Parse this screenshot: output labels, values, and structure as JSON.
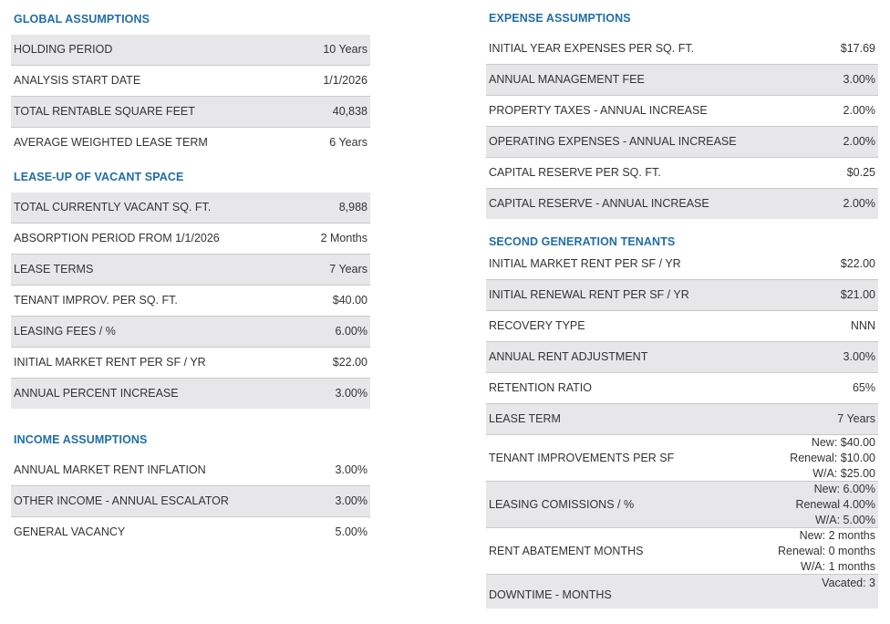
{
  "global": {
    "title": "GLOBAL ASSUMPTIONS",
    "rows": [
      {
        "label": "HOLDING PERIOD",
        "value": "10 Years"
      },
      {
        "label": "ANALYSIS START DATE",
        "value": "1/1/2026"
      },
      {
        "label": "TOTAL RENTABLE SQUARE FEET",
        "value": "40,838"
      },
      {
        "label": "AVERAGE WEIGHTED LEASE TERM",
        "value": "6 Years"
      }
    ]
  },
  "leaseup": {
    "title": "LEASE-UP OF VACANT SPACE",
    "rows": [
      {
        "label": "TOTAL CURRENTLY VACANT SQ. FT.",
        "value": "8,988"
      },
      {
        "label": "ABSORPTION PERIOD FROM 1/1/2026",
        "value": "2 Months"
      },
      {
        "label": "LEASE TERMS",
        "value": "7 Years"
      },
      {
        "label": "TENANT IMPROV. PER SQ. FT.",
        "value": "$40.00"
      },
      {
        "label": "LEASING FEES / %",
        "value": "6.00%"
      },
      {
        "label": "INITIAL MARKET RENT PER SF / YR",
        "value": "$22.00"
      },
      {
        "label": "ANNUAL PERCENT INCREASE",
        "value": "3.00%"
      }
    ]
  },
  "income": {
    "title": "INCOME ASSUMPTIONS",
    "rows": [
      {
        "label": "ANNUAL MARKET RENT INFLATION",
        "value": "3.00%"
      },
      {
        "label": "OTHER INCOME - ANNUAL ESCALATOR",
        "value": "3.00%"
      },
      {
        "label": "GENERAL VACANCY",
        "value": "5.00%"
      }
    ]
  },
  "expense": {
    "title": "EXPENSE ASSUMPTIONS",
    "rows": [
      {
        "label": "INITIAL YEAR EXPENSES PER SQ. FT.",
        "value": "$17.69"
      },
      {
        "label": "ANNUAL MANAGEMENT FEE",
        "value": "3.00%"
      },
      {
        "label": "PROPERTY TAXES - ANNUAL INCREASE",
        "value": "2.00%"
      },
      {
        "label": "OPERATING EXPENSES - ANNUAL INCREASE",
        "value": "2.00%"
      },
      {
        "label": "CAPITAL RESERVE PER SQ. FT.",
        "value": "$0.25"
      },
      {
        "label": "CAPITAL RESERVE - ANNUAL INCREASE",
        "value": "2.00%"
      }
    ]
  },
  "second": {
    "title": "SECOND GENERATION TENANTS",
    "rows": [
      {
        "label": "INITIAL MARKET RENT PER SF / YR",
        "value": "$22.00"
      },
      {
        "label": "INITIAL RENEWAL RENT PER SF / YR",
        "value": "$21.00"
      },
      {
        "label": "RECOVERY TYPE",
        "value": "NNN"
      },
      {
        "label": "ANNUAL RENT ADJUSTMENT",
        "value": "3.00%"
      },
      {
        "label": "RETENTION RATIO",
        "value": "65%"
      },
      {
        "label": "LEASE TERM",
        "value": "7 Years"
      }
    ],
    "ti": {
      "label": "TENANT IMPROVEMENTS PER SF",
      "lines": [
        "New: $40.00",
        "Renewal: $10.00",
        "W/A: $25.00"
      ]
    },
    "lc": {
      "label": "LEASING COMISSIONS / %",
      "lines": [
        "New: 6.00%",
        "Renewal 4.00%",
        "W/A: 5.00%"
      ]
    },
    "ra": {
      "label": "RENT ABATEMENT MONTHS",
      "lines": [
        "New: 2 months",
        "Renewal: 0 months",
        "W/A: 1 months"
      ]
    },
    "dt": {
      "label": "DOWNTIME - MONTHS",
      "value": "Vacated: 3"
    }
  }
}
